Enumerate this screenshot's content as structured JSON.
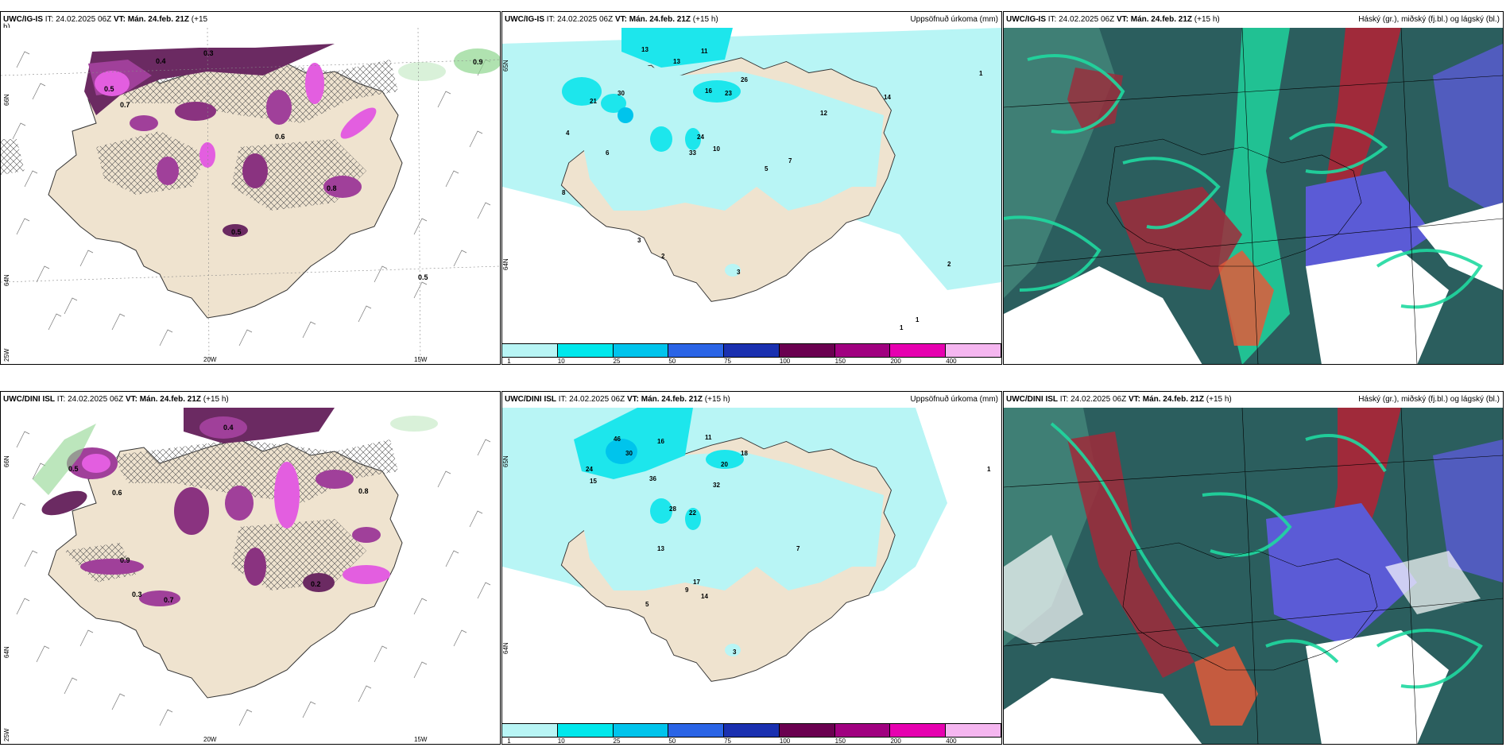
{
  "panels": [
    {
      "model": "UWC/IG-IS",
      "it_label": "IT:",
      "it": "24.02.2025 06Z",
      "vt_label": "VT:",
      "vt": "Mán. 24.feb. 21Z",
      "lead": "(+15",
      "lead2": "h)",
      "title_right": "",
      "lat_labels": [
        "66N",
        "64N",
        "25W"
      ],
      "lon_labels": [
        "20W",
        "15W"
      ],
      "values": [
        "0.3",
        "0.4",
        "0.5",
        "0.7",
        "0.6",
        "0.8",
        "0.5",
        "0.9"
      ]
    },
    {
      "model": "UWC/IG-IS",
      "it_label": "IT:",
      "it": "24.02.2025 06Z",
      "vt_label": "VT:",
      "vt": "Mán. 24.feb. 21Z",
      "lead": "(+15 h)",
      "title_right": "Uppsöfnuð úrkoma (mm)",
      "lat_labels": [
        "65N",
        "64N"
      ],
      "values": [
        "13",
        "11",
        "30",
        "21",
        "26",
        "16",
        "23",
        "24",
        "33",
        "10",
        "8",
        "4",
        "6",
        "3",
        "2",
        "5",
        "7",
        "12",
        "14",
        "1"
      ]
    },
    {
      "model": "UWC/IG-IS",
      "it_label": "IT:",
      "it": "24.02.2025 06Z",
      "vt_label": "VT:",
      "vt": "Mán. 24.feb. 21Z",
      "lead": "(+15 h)",
      "title_right": "Háský (gr.), miðský (fj.bl.) og lágský (bl.)"
    },
    {
      "model": "UWC/DINI ISL",
      "it_label": "IT:",
      "it": "24.02.2025 06Z",
      "vt_label": "VT:",
      "vt": "Mán. 24.feb. 21Z",
      "lead": "(+15 h)",
      "title_right": "",
      "lat_labels": [
        "66N",
        "64N",
        "25W"
      ],
      "lon_labels": [
        "20W",
        "15W"
      ],
      "values": [
        "0.4",
        "0.5",
        "0.8",
        "0.6",
        "0.7",
        "0.3",
        "0.9",
        "0.2"
      ]
    },
    {
      "model": "UWC/DINI ISL",
      "it_label": "IT:",
      "it": "24.02.2025 06Z",
      "vt_label": "VT:",
      "vt": "Mán. 24.feb. 21Z",
      "lead": "(+15 h)",
      "title_right": "Uppsöfnuð úrkoma (mm)",
      "lat_labels": [
        "65N",
        "64N"
      ],
      "values": [
        "46",
        "16",
        "11",
        "30",
        "24",
        "22",
        "15",
        "18",
        "20",
        "32",
        "36",
        "28",
        "17",
        "9",
        "13",
        "14",
        "7",
        "5",
        "3",
        "1"
      ]
    },
    {
      "model": "UWC/DINI ISL",
      "it_label": "IT:",
      "it": "24.02.2025 06Z",
      "vt_label": "VT:",
      "vt": "Mán. 24.feb. 21Z",
      "lead": "(+15 h)",
      "title_right": "Háský (gr.), miðský (fj.bl.) og lágský (bl.)"
    }
  ],
  "colorbar": {
    "labels": [
      "1",
      "10",
      "25",
      "50",
      "75",
      "100",
      "150",
      "200",
      "400"
    ],
    "colors": [
      "#b8f5f5",
      "#00e8ec",
      "#00c4ec",
      "#2a64e6",
      "#1a30b0",
      "#6a0050",
      "#a00080",
      "#e600b0",
      "#f5b6f0"
    ]
  },
  "colors": {
    "land": "#efe3cf",
    "precip_light": "#b8f5f5",
    "precip_mid": "#1de6ec",
    "icing_dark": "#6b2a62",
    "icing_mid": "#a0409a",
    "icing_bright": "#e35ee0",
    "cloud_high": "#2b5e5e",
    "cloud_low": "#5b5bd6",
    "cloud_green": "#1fd9a0",
    "cloud_red": "#a02a3a"
  }
}
